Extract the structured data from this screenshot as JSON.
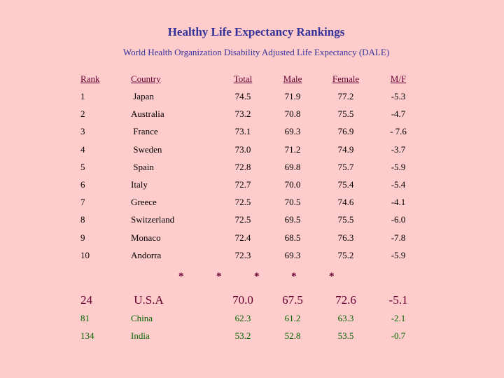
{
  "title": "Healthy Life Expectancy Rankings",
  "subtitle": "World Health Organization Disability Adjusted Life Expectancy (DALE)",
  "headers": {
    "rank": "Rank",
    "country": "Country",
    "total": "Total",
    "male": "Male",
    "female": "Female",
    "mf": "M/F"
  },
  "rows": [
    {
      "rank": "1",
      "country": " Japan",
      "total": "74.5",
      "male": "71.9",
      "female": "77.2",
      "mf": "-5.3"
    },
    {
      "rank": "2",
      "country": "Australia",
      "total": "73.2",
      "male": "70.8",
      "female": "75.5",
      "mf": "-4.7"
    },
    {
      "rank": "3",
      "country": " France",
      "total": "73.1",
      "male": "69.3",
      "female": "76.9",
      "mf": "- 7.6"
    },
    {
      "rank": "4",
      "country": " Sweden",
      "total": "73.0",
      "male": "71.2",
      "female": "74.9",
      "mf": "-3.7"
    },
    {
      "rank": "5",
      "country": " Spain",
      "total": "72.8",
      "male": "69.8",
      "female": "75.7",
      "mf": "-5.9"
    },
    {
      "rank": "6",
      "country": "Italy",
      "total": "72.7",
      "male": "70.0",
      "female": "75.4",
      "mf": "-5.4"
    },
    {
      "rank": "7",
      "country": "Greece",
      "total": "72.5",
      "male": "70.5",
      "female": "74.6",
      "mf": "-4.1"
    },
    {
      "rank": "8",
      "country": "Switzerland",
      "total": "72.5",
      "male": "69.5",
      "female": "75.5",
      "mf": "-6.0"
    },
    {
      "rank": "9",
      "country": "Monaco",
      "total": "72.4",
      "male": "68.5",
      "female": "76.3",
      "mf": "-7.8"
    },
    {
      "rank": "10",
      "country": "Andorra",
      "total": "72.3",
      "male": "69.3",
      "female": "75.2",
      "mf": "-5.9"
    }
  ],
  "separator": "*",
  "us": {
    "rank": "24",
    "country": " U.S.A",
    "total": "70.0",
    "male": "67.5",
    "female": "72.6",
    "mf": "-5.1"
  },
  "others": [
    {
      "rank": "81",
      "country": "China",
      "total": "62.3",
      "male": "61.2",
      "female": "63.3",
      "mf": "-2.1"
    },
    {
      "rank": "134",
      "country": "India",
      "total": "53.2",
      "male": "52.8",
      "female": "53.5",
      "mf": "-0.7"
    }
  ],
  "colors": {
    "background": "#FFCCCC",
    "title": "#333399",
    "text": "#660033",
    "green": "#006600"
  }
}
